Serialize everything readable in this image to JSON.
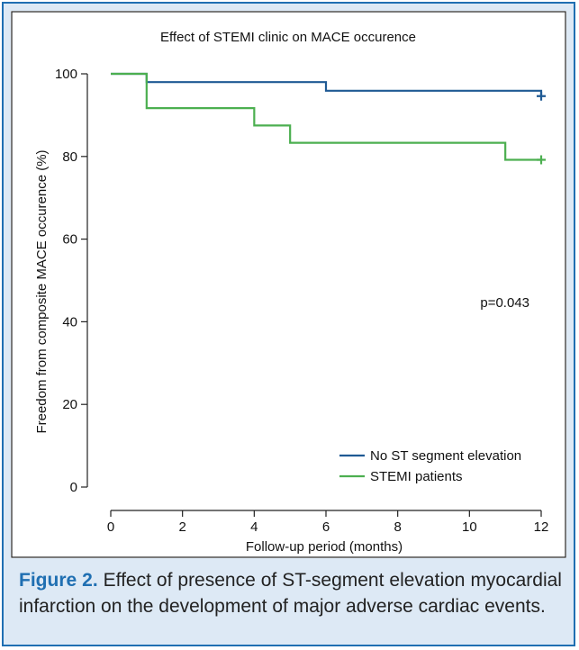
{
  "chart_data": {
    "type": "line",
    "title": "Effect of STEMI clinic on MACE occurence",
    "xlabel": "Follow-up period (months)",
    "ylabel": "Freedom from composite MACE occurence (%)",
    "xlim": [
      0,
      12
    ],
    "ylim": [
      0,
      100
    ],
    "xticks": [
      0,
      2,
      4,
      6,
      8,
      10,
      12
    ],
    "yticks": [
      0,
      20,
      40,
      60,
      80,
      100
    ],
    "grid": false,
    "legend_position": "bottom-right",
    "annotation": "p=0.043",
    "series": [
      {
        "name": "No ST segment elevation",
        "color": "#1f5a94",
        "step": true,
        "x": [
          0,
          1,
          6,
          12
        ],
        "y": [
          100,
          98,
          95.9,
          94.6
        ],
        "censored": [
          [
            12,
            94.6
          ]
        ]
      },
      {
        "name": "STEMI patients",
        "color": "#4caf50",
        "step": true,
        "x": [
          0,
          1,
          4,
          5,
          11,
          12
        ],
        "y": [
          100,
          91.7,
          87.5,
          83.3,
          79.2,
          79.2
        ],
        "censored": [
          [
            12,
            79.2
          ]
        ]
      }
    ]
  },
  "caption": {
    "label": "Figure 2.",
    "text": " Effect of presence of ST-segment elevation myocardial infarction on the development of major adverse cardiac events."
  }
}
